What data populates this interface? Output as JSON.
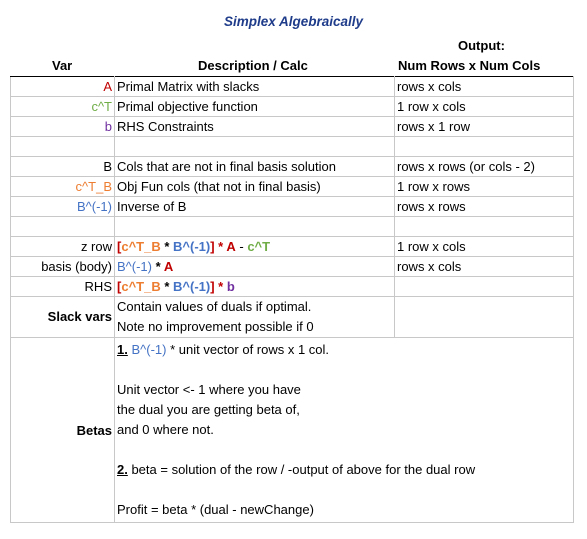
{
  "title": "Simplex Algebraically",
  "headers": {
    "var": "Var",
    "desc": "Description / Calc",
    "output_top": "Output:",
    "output_sub": "Num Rows x Num Cols"
  },
  "rows": {
    "A": {
      "var": "A",
      "desc": "Primal Matrix with slacks",
      "out": "rows  x cols"
    },
    "cT": {
      "var": "c^T",
      "desc": "Primal objective function",
      "out": "1 row x cols"
    },
    "b": {
      "var": "b",
      "desc": "RHS Constraints",
      "out": "rows  x 1 row"
    },
    "B": {
      "var": "B",
      "desc": "Cols that are not in final basis solution",
      "out": "rows  x rows (or cols - 2)"
    },
    "cTB": {
      "var": "c^T_B",
      "desc": "Obj Fun cols (that not in final basis)",
      "out": "1 row x rows"
    },
    "Binv": {
      "var": "B^(-1)",
      "desc": "Inverse of B",
      "out": "rows  x rows"
    },
    "zrow": {
      "var": "z row",
      "p1": "[",
      "p2": "c^T_B",
      "p3": " * ",
      "p4": "B^(-1)",
      "p5": "] * ",
      "p6": "A",
      "p7": " - ",
      "p8": "c^T",
      "out": "1 row x cols"
    },
    "basis": {
      "var": "basis (body)",
      "p1": "B^(-1)",
      "p2": " * ",
      "p3": "A",
      "out": "rows  x cols"
    },
    "rhs": {
      "var": "RHS",
      "p1": "[",
      "p2": "c^T_B",
      "p3": " * ",
      "p4": "B^(-1)",
      "p5": "] * ",
      "p6": "b"
    },
    "slack": {
      "var": "Slack vars",
      "line1": "Contain values of duals if optimal.",
      "line2": "Note no improvement possible if 0"
    },
    "betas": {
      "var": "Betas",
      "step1_num": "1.",
      "step1_a": "B^(-1)",
      "step1_b": " * unit vector of rows x 1 col.",
      "unit1": "Unit vector <- 1 where you have",
      "unit2": "the dual you are getting beta of,",
      "unit3": "and 0 where not.",
      "step2_num": "2.",
      "step2_text": " beta = solution of the row / -output of above for the dual row",
      "profit": "Profit = beta * (dual - newChange)"
    }
  }
}
